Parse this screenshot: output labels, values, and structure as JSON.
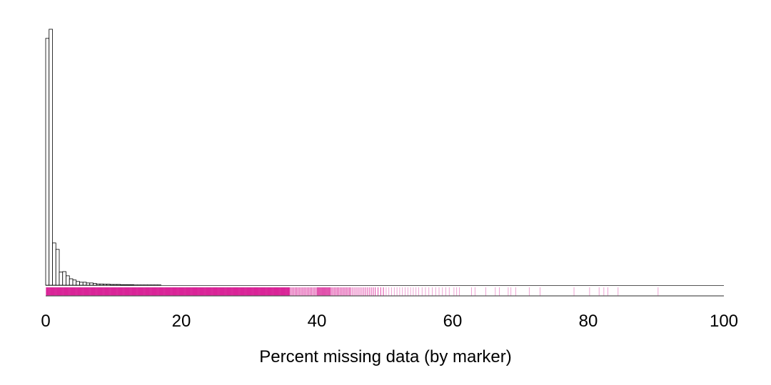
{
  "chart_data": {
    "type": "bar",
    "title": "",
    "xlabel": "Percent missing data (by marker)",
    "ylabel": "",
    "xlim": [
      0,
      100
    ],
    "xticks": [
      0,
      20,
      40,
      60,
      80,
      100
    ],
    "grid": false,
    "bin_width": 0.5,
    "bins_start": 0,
    "histogram_counts": [
      1000,
      1037,
      171,
      145,
      53,
      55,
      38,
      26,
      21,
      15,
      12,
      12,
      9,
      9,
      7,
      5,
      5,
      4,
      4,
      3,
      3,
      3,
      2,
      2,
      2,
      2,
      1,
      1,
      1,
      1,
      1,
      1,
      1,
      1
    ],
    "rug_color": "#d81b93",
    "rug_values": [
      0.1,
      0.2,
      0.3,
      0.4,
      0.5,
      0.6,
      0.7,
      0.8,
      0.9,
      1.0,
      1.1,
      1.2,
      1.3,
      1.4,
      1.5,
      1.6,
      1.7,
      1.8,
      1.9,
      2.0,
      2.1,
      2.2,
      2.3,
      2.4,
      2.5,
      2.6,
      2.7,
      2.8,
      2.9,
      3.0,
      3.1,
      3.2,
      3.3,
      3.4,
      3.5,
      3.6,
      3.7,
      3.8,
      3.9,
      4.0,
      4.1,
      4.2,
      4.3,
      4.4,
      4.5,
      4.6,
      4.7,
      4.8,
      4.9,
      5.0,
      5.1,
      5.2,
      5.3,
      5.4,
      5.5,
      5.6,
      5.7,
      5.8,
      5.9,
      6.0,
      6.1,
      6.2,
      6.3,
      6.4,
      6.5,
      6.6,
      6.7,
      6.8,
      6.9,
      7.0,
      7.1,
      7.2,
      7.3,
      7.4,
      7.5,
      7.6,
      7.7,
      7.8,
      7.9,
      8.0,
      8.1,
      8.2,
      8.3,
      8.4,
      8.5,
      8.6,
      8.7,
      8.8,
      8.9,
      9.0,
      9.1,
      9.2,
      9.3,
      9.4,
      9.5,
      9.6,
      9.7,
      9.8,
      9.9,
      10.0,
      10.1,
      10.2,
      10.3,
      10.4,
      10.5,
      10.6,
      10.7,
      10.8,
      10.9,
      11.0,
      11.1,
      11.2,
      11.3,
      11.4,
      11.5,
      11.6,
      11.7,
      11.8,
      11.9,
      12.0,
      12.1,
      12.2,
      12.3,
      12.4,
      12.5,
      12.6,
      12.7,
      12.8,
      12.9,
      13.0,
      13.1,
      13.2,
      13.3,
      13.4,
      13.5,
      13.6,
      13.7,
      13.8,
      13.9,
      14.0,
      14.1,
      14.2,
      14.3,
      14.4,
      14.5,
      14.6,
      14.7,
      14.8,
      14.9,
      15.0,
      15.1,
      15.2,
      15.3,
      15.4,
      15.5,
      15.6,
      15.7,
      15.8,
      15.9,
      16.0,
      16.1,
      16.2,
      16.3,
      16.4,
      16.5,
      16.6,
      16.7,
      16.8,
      16.9,
      17.0,
      17.1,
      17.2,
      17.3,
      17.4,
      17.5,
      17.6,
      17.7,
      17.8,
      17.9,
      18.0,
      18.1,
      18.2,
      18.3,
      18.4,
      18.5,
      18.6,
      18.7,
      18.8,
      18.9,
      19.0,
      19.1,
      19.2,
      19.3,
      19.4,
      19.5,
      19.6,
      19.7,
      19.8,
      19.9,
      20.0,
      20.1,
      20.2,
      20.3,
      20.4,
      20.5,
      20.6,
      20.7,
      20.8,
      20.9,
      21.0,
      21.1,
      21.2,
      21.3,
      21.4,
      21.5,
      21.6,
      21.7,
      21.8,
      21.9,
      22.0,
      22.1,
      22.2,
      22.3,
      22.4,
      22.5,
      22.6,
      22.7,
      22.8,
      22.9,
      23.0,
      23.1,
      23.2,
      23.3,
      23.4,
      23.5,
      23.6,
      23.7,
      23.8,
      23.9,
      24.0,
      24.1,
      24.2,
      24.3,
      24.4,
      24.5,
      24.6,
      24.7,
      24.8,
      24.9,
      25.0,
      25.1,
      25.2,
      25.3,
      25.4,
      25.5,
      25.6,
      25.7,
      25.8,
      25.9,
      26.0,
      26.1,
      26.2,
      26.3,
      26.4,
      26.5,
      26.6,
      26.7,
      26.8,
      26.9,
      27.0,
      27.1,
      27.2,
      27.3,
      27.4,
      27.5,
      27.6,
      27.7,
      27.8,
      27.9,
      28.0,
      28.1,
      28.2,
      28.3,
      28.4,
      28.5,
      28.6,
      28.7,
      28.8,
      28.9,
      29.0,
      29.1,
      29.2,
      29.3,
      29.4,
      29.5,
      29.6,
      29.7,
      29.8,
      29.9,
      30.0,
      30.1,
      30.2,
      30.3,
      30.4,
      30.5,
      30.6,
      30.7,
      30.8,
      30.9,
      31.0,
      31.1,
      31.2,
      31.3,
      31.4,
      31.5,
      31.6,
      31.7,
      31.8,
      31.9,
      32.0,
      32.1,
      32.2,
      32.3,
      32.4,
      32.5,
      32.6,
      32.7,
      32.8,
      32.9,
      33.0,
      33.1,
      33.2,
      33.3,
      33.4,
      33.5,
      33.6,
      33.7,
      33.8,
      33.9,
      34.0,
      34.1,
      34.2,
      34.3,
      34.4,
      34.5,
      34.6,
      34.7,
      34.8,
      34.9,
      35.0,
      35.1,
      35.2,
      35.3,
      35.4,
      35.5,
      35.6,
      35.7,
      35.8,
      35.9,
      36.0,
      36.2,
      36.4,
      36.6,
      36.8,
      37.0,
      37.2,
      37.4,
      37.6,
      37.8,
      38.0,
      38.2,
      38.4,
      38.6,
      38.8,
      39.0,
      39.2,
      39.4,
      39.6,
      39.8,
      40.0,
      40.1,
      40.2,
      40.3,
      40.4,
      40.5,
      40.6,
      40.7,
      40.8,
      40.9,
      41.0,
      41.1,
      41.2,
      41.3,
      41.4,
      41.5,
      41.6,
      41.7,
      41.8,
      41.9,
      42.0,
      42.2,
      42.4,
      42.6,
      42.8,
      43.0,
      43.2,
      43.4,
      43.6,
      43.8,
      44.0,
      44.2,
      44.4,
      44.6,
      44.8,
      45.0,
      45.3,
      45.6,
      45.9,
      46.2,
      46.5,
      46.8,
      47.1,
      47.4,
      47.7,
      48.0,
      48.3,
      48.6,
      49.0,
      49.4,
      49.8,
      50.2,
      50.6,
      51.0,
      51.4,
      51.8,
      52.2,
      52.6,
      53.0,
      53.4,
      53.8,
      54.2,
      54.6,
      55.0,
      55.5,
      56.0,
      56.5,
      57.0,
      57.5,
      58.0,
      58.5,
      59.0,
      59.5,
      60.2,
      60.6,
      61.0,
      62.8,
      63.3,
      64.9,
      66.3,
      66.9,
      68.2,
      68.6,
      69.3,
      71.3,
      72.9,
      77.9,
      80.2,
      81.6,
      82.3,
      82.9,
      84.4,
      90.3
    ]
  }
}
